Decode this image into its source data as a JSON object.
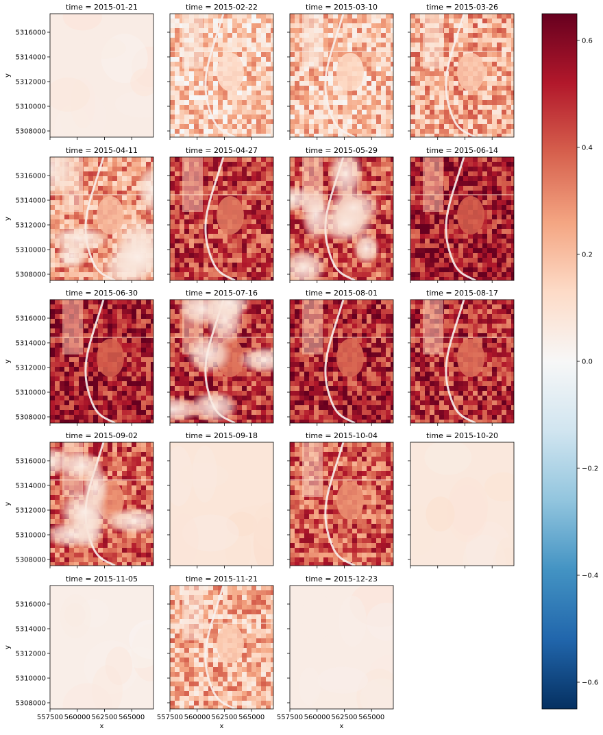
{
  "chart_data": {
    "type": "heatmap",
    "panel_title_prefix": "time = ",
    "panels": [
      {
        "time": "2015-01-21",
        "level": 0.05,
        "style": "haze"
      },
      {
        "time": "2015-02-22",
        "level": 0.16,
        "style": "land"
      },
      {
        "time": "2015-03-10",
        "level": 0.18,
        "style": "land"
      },
      {
        "time": "2015-03-26",
        "level": 0.24,
        "style": "land"
      },
      {
        "time": "2015-04-11",
        "level": 0.28,
        "style": "cloud"
      },
      {
        "time": "2015-04-27",
        "level": 0.45,
        "style": "land"
      },
      {
        "time": "2015-05-29",
        "level": 0.42,
        "style": "cloud"
      },
      {
        "time": "2015-06-14",
        "level": 0.52,
        "style": "land"
      },
      {
        "time": "2015-06-30",
        "level": 0.52,
        "style": "land"
      },
      {
        "time": "2015-07-16",
        "level": 0.47,
        "style": "cloud"
      },
      {
        "time": "2015-08-01",
        "level": 0.5,
        "style": "land"
      },
      {
        "time": "2015-08-17",
        "level": 0.48,
        "style": "land"
      },
      {
        "time": "2015-09-02",
        "level": 0.4,
        "style": "cloud"
      },
      {
        "time": "2015-09-18",
        "level": 0.08,
        "style": "haze"
      },
      {
        "time": "2015-10-04",
        "level": 0.4,
        "style": "land"
      },
      {
        "time": "2015-10-20",
        "level": 0.07,
        "style": "haze"
      },
      {
        "time": "2015-11-05",
        "level": 0.04,
        "style": "haze"
      },
      {
        "time": "2015-11-21",
        "level": 0.22,
        "style": "land"
      },
      {
        "time": "2015-12-23",
        "level": 0.05,
        "style": "haze"
      }
    ],
    "xlabel": "x",
    "ylabel": "y",
    "xlim": [
      557500,
      567000
    ],
    "ylim": [
      5307500,
      5317500
    ],
    "x_ticks": [
      557500,
      560000,
      562500,
      565000
    ],
    "x_tick_labels": [
      "557500",
      "560000",
      "562500",
      "565000"
    ],
    "y_ticks": [
      5308000,
      5310000,
      5312000,
      5314000,
      5316000
    ],
    "y_tick_labels": [
      "5308000",
      "5310000",
      "5312000",
      "5314000",
      "5316000"
    ],
    "colorbar": {
      "colormap": "RdBu_r",
      "range": [
        -0.65,
        0.65
      ],
      "ticks": [
        -0.6,
        -0.4,
        -0.2,
        0.0,
        0.2,
        0.4,
        0.6
      ],
      "tick_labels": [
        "−0.6",
        "−0.4",
        "−0.2",
        "0.0",
        "0.2",
        "0.4",
        "0.6"
      ]
    },
    "grid": false
  }
}
